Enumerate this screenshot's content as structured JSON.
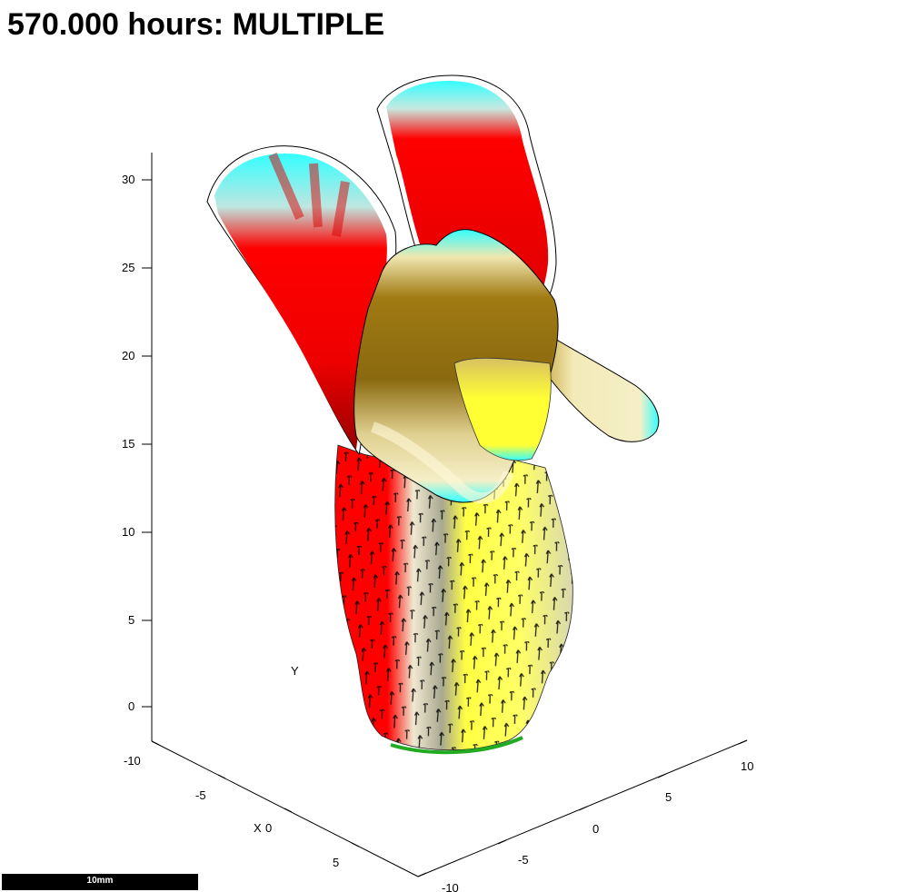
{
  "title": "570.000 hours: MULTIPLE",
  "scale_bar": {
    "label": "10mm"
  },
  "axes": {
    "z_ticks": [
      "30",
      "25",
      "20",
      "15",
      "10",
      "5",
      "0"
    ],
    "x_label": "X",
    "x_ticks": [
      "-10",
      "-5",
      "0",
      "5"
    ],
    "y_label": "Y",
    "y_ticks": [
      "10",
      "5",
      "0",
      "-5",
      "-10"
    ]
  },
  "colors": {
    "red": "#ff0000",
    "cyan": "#33ffff",
    "yellow": "#ffff33",
    "olive": "#9c7a10",
    "cream": "#f5efc8",
    "green": "#22aa22"
  }
}
